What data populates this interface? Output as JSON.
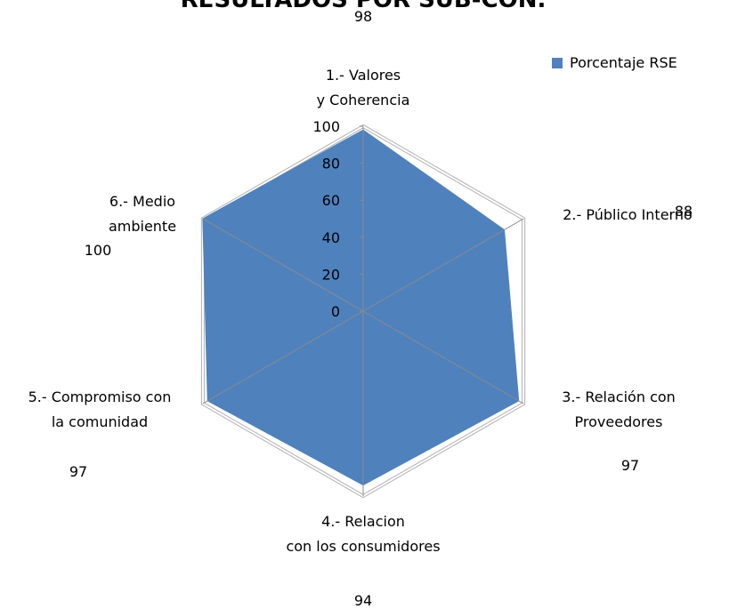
{
  "chart_data": {
    "type": "radar",
    "title": "RESULTADOS POR SUB-CON.",
    "categories": [
      "1.- Valores y Coherencia",
      "2.- Público Interno",
      "3.- Relación con Proveedores",
      "4.- Relacion con los consumidores",
      "5.- Compromiso con la comunidad",
      "6.- Medio ambiente"
    ],
    "series": [
      {
        "name": "Porcentaje RSE",
        "color": "#4f81bd",
        "values": [
          98,
          88,
          97,
          94,
          97,
          100
        ]
      }
    ],
    "ylim": [
      0,
      100
    ],
    "yticks": [
      0,
      20,
      40,
      60,
      80,
      100
    ],
    "legend": "top-right"
  }
}
